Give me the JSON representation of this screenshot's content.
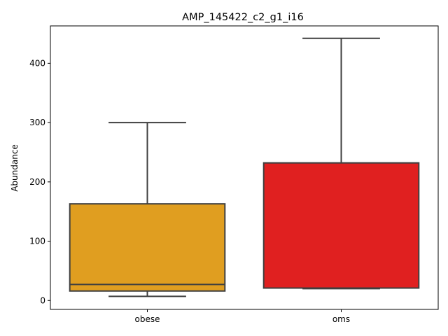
{
  "chart_data": {
    "type": "box",
    "title": "AMP_145422_c2_g1_i16",
    "xlabel": "",
    "ylabel": "Abundance",
    "ylim": [
      -15,
      463
    ],
    "yticks": [
      0,
      100,
      200,
      300,
      400
    ],
    "grid": false,
    "categories": [
      "obese",
      "oms"
    ],
    "boxes": [
      {
        "category": "obese",
        "whisker_low": 7,
        "q1": 16,
        "median": 27,
        "q3": 163,
        "whisker_high": 300,
        "color": "#e09e20"
      },
      {
        "category": "oms",
        "whisker_low": 20,
        "q1": 21,
        "median": 21,
        "q3": 232,
        "whisker_high": 442,
        "color": "#e02020"
      }
    ]
  },
  "colors": {
    "box_edge": "#3f3f3f",
    "axes": "#000000"
  }
}
